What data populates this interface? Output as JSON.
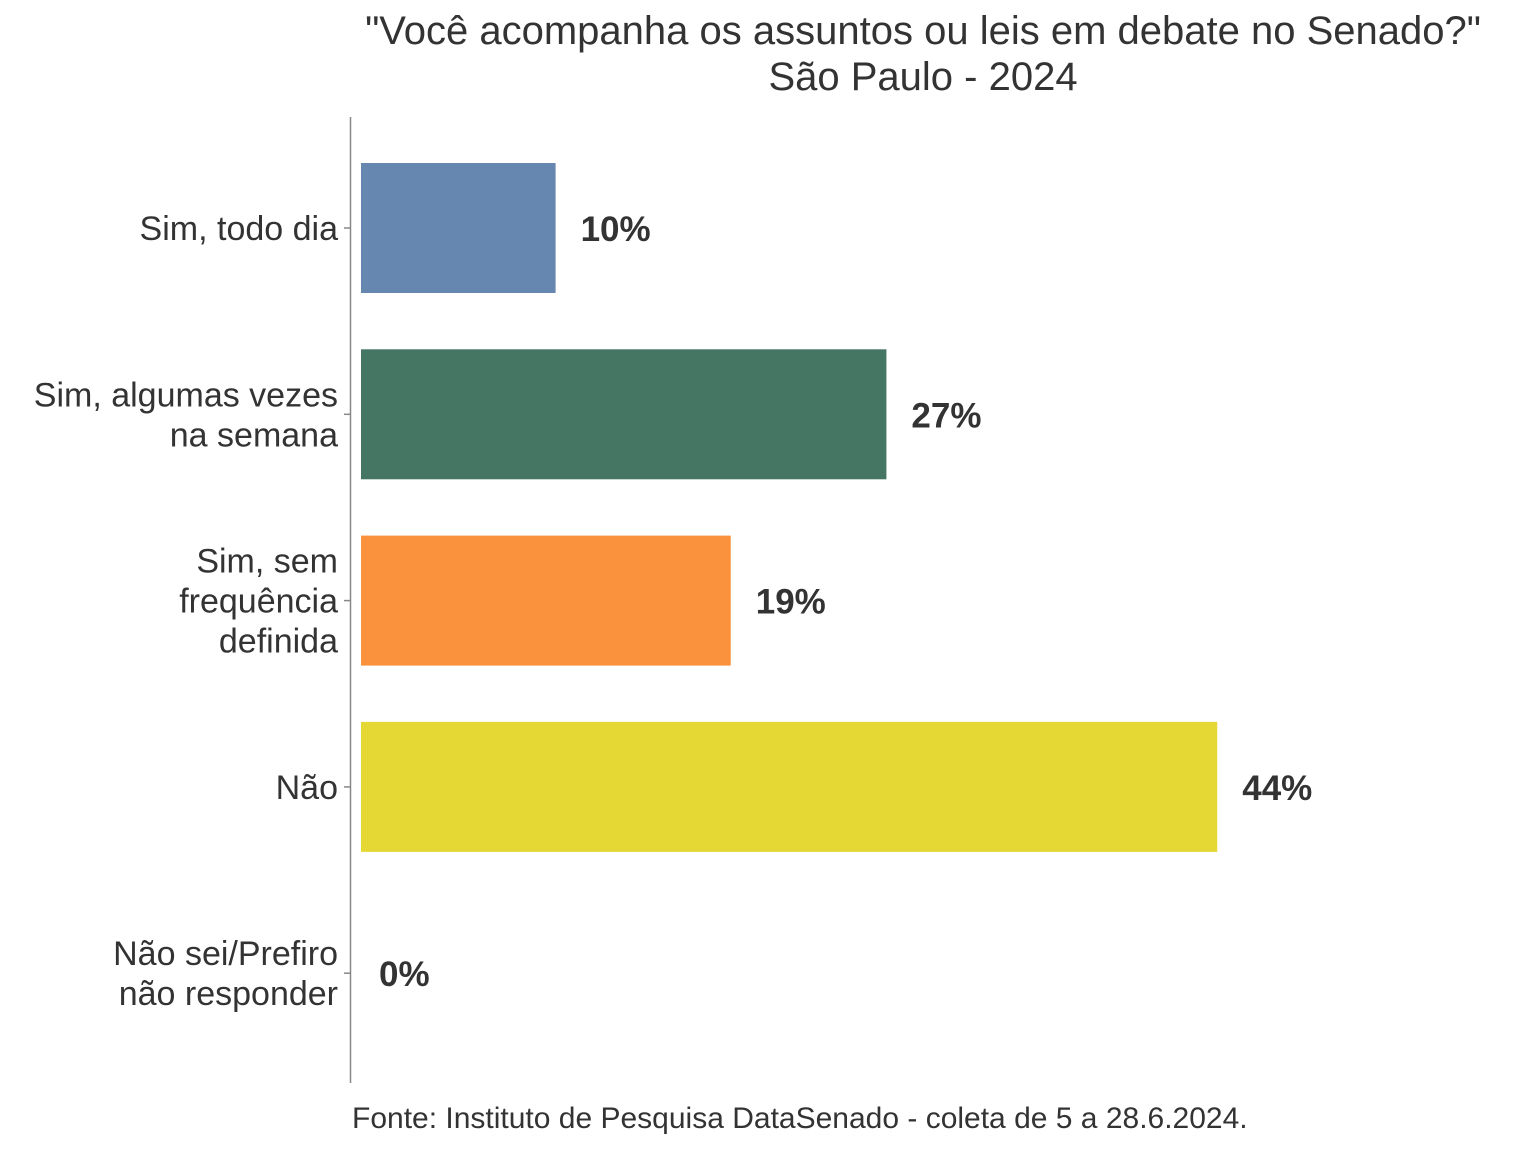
{
  "chart_data": {
    "type": "bar",
    "orientation": "horizontal",
    "title": "\"Você acompanha os assuntos ou leis em debate no Senado?\"",
    "subtitle": "São Paulo - 2024",
    "categories": [
      "Sim, todo dia",
      "Sim, algumas vezes\nna semana",
      "Sim, sem\nfrequência\ndefinida",
      "Não",
      "Não sei/Prefiro\nnão responder"
    ],
    "values": [
      10,
      27,
      19,
      44,
      0
    ],
    "value_labels": [
      "10%",
      "27%",
      "19%",
      "44%",
      "0%"
    ],
    "colors": [
      "#6688B0",
      "#447663",
      "#FA923D",
      "#E5D835",
      "#999999"
    ],
    "xlabel": "",
    "ylabel": "",
    "xlim": [
      0,
      50
    ],
    "grid": false,
    "legend": "none",
    "caption": "Fonte: Instituto de Pesquisa DataSenado - coleta de 5 a 28.6.2024."
  }
}
